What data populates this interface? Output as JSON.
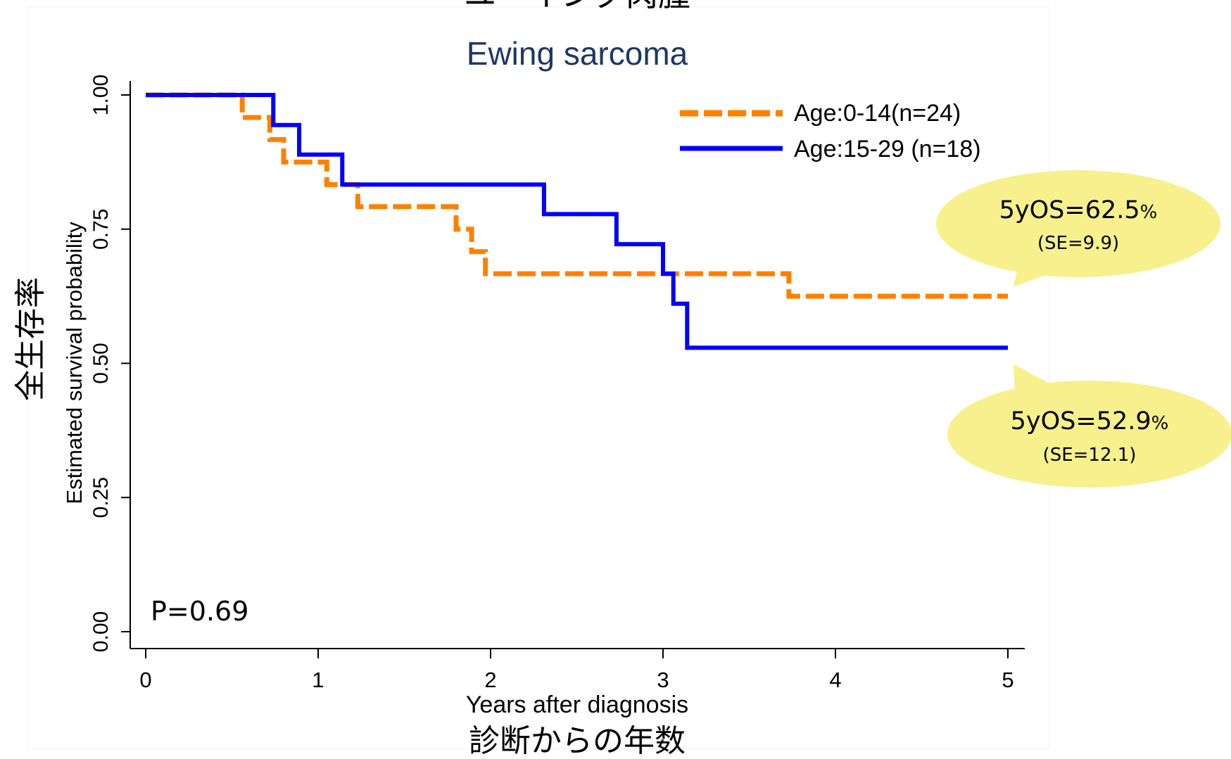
{
  "chart_data": {
    "type": "line",
    "title_jp": "ユーイング肉腫",
    "title": "Ewing sarcoma",
    "xlabel": "Years after diagnosis",
    "xlabel_jp": "診断からの年数",
    "ylabel": "Estimated survival probability",
    "ylabel_jp": "全生存率",
    "xlim": [
      0,
      5
    ],
    "ylim": [
      0,
      1
    ],
    "x_ticks": [
      0,
      1,
      2,
      3,
      4,
      5
    ],
    "x_tick_labels": [
      "0",
      "1",
      "2",
      "3",
      "4",
      "5"
    ],
    "y_ticks": [
      0,
      0.25,
      0.5,
      0.75,
      1
    ],
    "y_tick_labels": [
      "0.00",
      "0.25",
      "0.50",
      "0.75",
      "1.00"
    ],
    "grid": false,
    "legend_position": "top-right",
    "series": [
      {
        "name": "Age:0-14(n=24)",
        "color": "#ff8000",
        "style": "dashed",
        "steps": [
          [
            0,
            1.0
          ],
          [
            0.56,
            0.958
          ],
          [
            0.72,
            0.917
          ],
          [
            0.8,
            0.875
          ],
          [
            1.05,
            0.833
          ],
          [
            1.23,
            0.792
          ],
          [
            1.8,
            0.75
          ],
          [
            1.89,
            0.708
          ],
          [
            1.97,
            0.667
          ],
          [
            3.73,
            0.625
          ],
          [
            5.0,
            0.625
          ]
        ]
      },
      {
        "name": "Age:15-29 (n=18)",
        "color": "#0000ff",
        "style": "solid",
        "steps": [
          [
            0,
            1.0
          ],
          [
            0.74,
            0.944
          ],
          [
            0.89,
            0.889
          ],
          [
            1.14,
            0.833
          ],
          [
            2.31,
            0.778
          ],
          [
            2.73,
            0.722
          ],
          [
            3.0,
            0.667
          ],
          [
            3.06,
            0.611
          ],
          [
            3.14,
            0.529
          ],
          [
            5.0,
            0.529
          ]
        ]
      }
    ],
    "annotations": {
      "p_value": "P=0.69",
      "callout_1": {
        "main": "5yOS=62.5",
        "unit": "%",
        "se": "(SE=9.9)"
      },
      "callout_2": {
        "main": "5yOS=52.9",
        "unit": "%",
        "se": "(SE=12.1)"
      }
    },
    "colors": {
      "callout_fill": "#f7f08c",
      "title_color": "#1f3864"
    }
  }
}
